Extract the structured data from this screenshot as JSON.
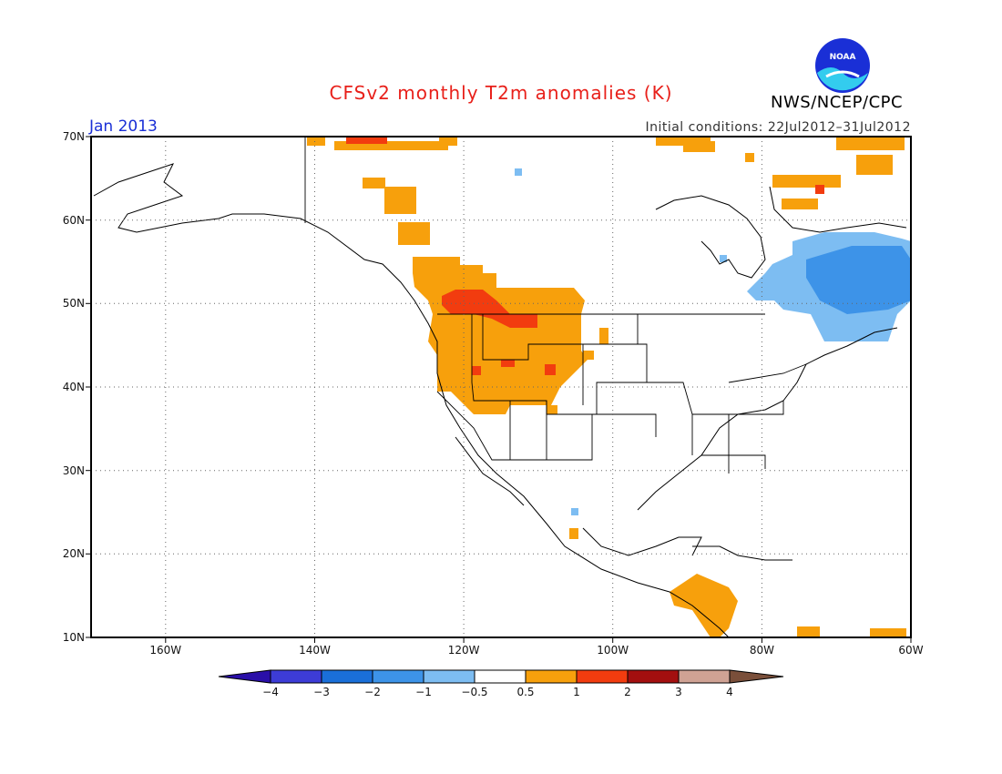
{
  "title": "CFSv2 monthly T2m anomalies (K)",
  "month": "Jan 2013",
  "initial_conditions": "Initial conditions: 22Jul2012–31Jul2012",
  "agency": "NWS/NCEP/CPC",
  "logo_text": "NOAA",
  "lat_labels": [
    "70N",
    "60N",
    "50N",
    "40N",
    "30N",
    "20N",
    "10N"
  ],
  "lon_labels": [
    "160W",
    "140W",
    "120W",
    "100W",
    "80W",
    "60W"
  ],
  "colorbar": {
    "labels": [
      "-4",
      "-3",
      "-2",
      "-1",
      "-0.5",
      "0.5",
      "1",
      "2",
      "3",
      "4"
    ],
    "colors": [
      "#2a0fa8",
      "#3d3cd6",
      "#1a6fd9",
      "#3d93e8",
      "#7dbdf2",
      "#ffffff",
      "#f7a00c",
      "#f23c0f",
      "#a30f0f",
      "#cfa294",
      "#7a4f3a"
    ]
  },
  "colors": {
    "land_outline": "#000000",
    "grid": "#666666"
  }
}
